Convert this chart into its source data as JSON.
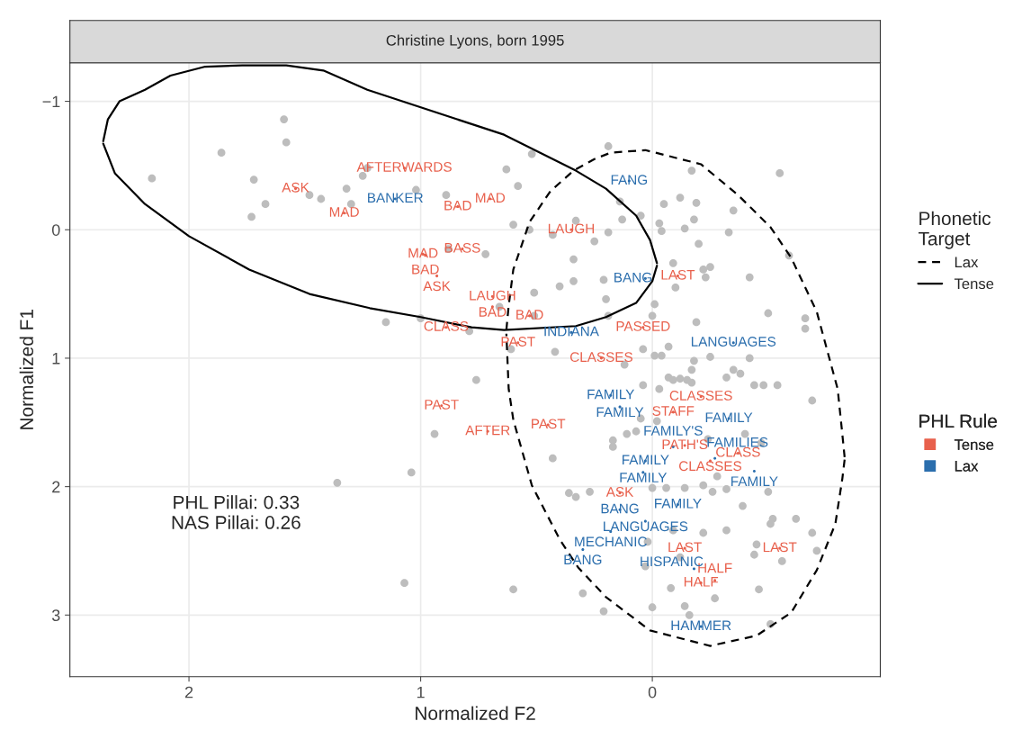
{
  "chart_data": {
    "type": "scatter",
    "title": "Christine Lyons, born 1995",
    "xlabel": "Normalized F2",
    "ylabel": "Normalized F1",
    "legend_title": [
      "Phonetic\nTarget",
      "PHL Rule"
    ],
    "xlim": [
      2.514,
      -0.984
    ],
    "ylim": [
      3.48,
      -1.3
    ],
    "xticks": [
      2,
      1,
      0
    ],
    "yticks": [
      {
        "value": -1,
        "label": "−1"
      },
      0,
      1,
      2,
      3
    ],
    "grid": true,
    "legend": "right",
    "annotations": [
      "PHL Pillai: 0.33\nNAS Pillai: 0.26"
    ],
    "series": [
      {
        "color": "#bdbdbd",
        "marker": "circle",
        "x": [
          1.59,
          1.58,
          1.86,
          2.16,
          1.72,
          1.67,
          1.73,
          1.48,
          1.43,
          1.32,
          1.3,
          1.25,
          1.23,
          1.02,
          0.89,
          0.63,
          0.52,
          0.58,
          0.6,
          0.53,
          0.33,
          0.43,
          0.25,
          0.88,
          0.72,
          0.34,
          0.34,
          0.4,
          0.21,
          0.51,
          0.2,
          0.66,
          0.51,
          1.0,
          1.15,
          0.79,
          0.61,
          0.42,
          0.76,
          0.19,
          -0.17,
          -0.55,
          0.14,
          -0.05,
          -0.12,
          -0.19,
          -0.35,
          0.13,
          0.05,
          -0.03,
          -0.18,
          -0.04,
          -0.14,
          -0.33,
          0.19,
          -0.2,
          -0.59,
          -0.09,
          -0.22,
          -0.25,
          -0.23,
          -0.42,
          -0.1,
          -0.01,
          0.0,
          0.19,
          -0.19,
          -0.5,
          -0.66,
          -0.66,
          -0.07,
          0.04,
          -0.01,
          -0.04,
          -0.25,
          -0.42,
          -0.18,
          0.12,
          -0.17,
          -0.35,
          -0.38,
          -0.07,
          -0.09,
          -0.12,
          -0.15,
          -0.17,
          -0.32,
          0.04,
          -0.03,
          -0.44,
          -0.48,
          -0.54,
          1.36,
          0.94,
          1.04,
          0.43,
          0.36,
          0.33,
          0.27,
          1.07,
          0.6,
          0.3,
          0.21,
          -0.69,
          0.17,
          0.17,
          0.11,
          0.07,
          0.05,
          -0.02,
          -0.4,
          -0.47,
          -0.24,
          -0.28,
          -0.32,
          -0.26,
          -0.22,
          -0.14,
          -0.06,
          0.0,
          -0.5,
          -0.39,
          -0.52,
          -0.51,
          -0.62,
          -0.69,
          -0.71,
          -0.56,
          -0.45,
          -0.44,
          -0.32,
          -0.22,
          -0.09,
          0.02,
          0.03,
          -0.08,
          -0.12,
          -0.27,
          -0.14,
          -0.16,
          0.0,
          -0.46,
          -0.51
        ],
        "values": [
          -0.86,
          -0.68,
          -0.6,
          -0.4,
          -0.39,
          -0.2,
          -0.1,
          -0.27,
          -0.24,
          -0.32,
          -0.2,
          -0.42,
          -0.48,
          -0.31,
          -0.27,
          -0.47,
          -0.59,
          -0.34,
          -0.04,
          0.0,
          -0.07,
          0.04,
          0.09,
          0.15,
          0.19,
          0.23,
          0.4,
          0.44,
          0.39,
          0.49,
          0.54,
          0.6,
          0.67,
          0.69,
          0.72,
          0.79,
          0.93,
          0.95,
          1.17,
          -0.65,
          -0.46,
          -0.44,
          -0.22,
          -0.2,
          -0.25,
          -0.21,
          -0.15,
          -0.08,
          -0.11,
          -0.05,
          -0.08,
          0.01,
          -0.01,
          0.02,
          0.02,
          0.11,
          0.2,
          0.26,
          0.31,
          0.29,
          0.37,
          0.37,
          0.45,
          0.58,
          0.67,
          0.67,
          0.72,
          0.65,
          0.69,
          0.77,
          0.91,
          0.93,
          0.98,
          0.98,
          0.99,
          1.0,
          1.02,
          1.05,
          1.09,
          1.09,
          1.12,
          1.15,
          1.17,
          1.16,
          1.17,
          1.19,
          1.15,
          1.21,
          1.24,
          1.21,
          1.21,
          1.21,
          1.97,
          1.59,
          1.89,
          1.78,
          2.05,
          2.08,
          2.04,
          2.75,
          2.8,
          2.83,
          2.97,
          1.33,
          1.64,
          1.69,
          1.59,
          1.57,
          1.47,
          1.49,
          1.59,
          1.66,
          1.63,
          1.92,
          2.02,
          2.04,
          1.99,
          2.01,
          2.01,
          2.01,
          2.04,
          2.15,
          2.25,
          2.29,
          2.25,
          2.36,
          2.5,
          2.58,
          2.45,
          2.53,
          2.34,
          2.36,
          2.34,
          2.43,
          2.62,
          2.79,
          2.55,
          2.87,
          2.93,
          3.0,
          2.94,
          2.8,
          3.07
        ]
      },
      {
        "type": "scatter",
        "name": "Tense",
        "color": "#e8604c",
        "marker": "none",
        "x": [
          1.07,
          1.54,
          1.33,
          0.84,
          0.7,
          0.35,
          0.99,
          0.98,
          0.82,
          0.93,
          0.69,
          0.69,
          0.53,
          0.89,
          0.58,
          0.04,
          -0.11,
          0.22,
          -0.21,
          -0.09,
          0.91,
          0.45,
          0.71,
          -0.14,
          -0.37,
          -0.25,
          0.14,
          -0.14,
          -0.55,
          -0.21,
          -0.27
        ],
        "values": [
          -0.48,
          -0.32,
          -0.13,
          -0.18,
          -0.24,
          0.0,
          0.19,
          0.2,
          0.15,
          0.36,
          0.52,
          0.6,
          0.67,
          0.76,
          0.88,
          0.76,
          0.36,
          1.0,
          1.3,
          1.42,
          1.37,
          1.52,
          1.57,
          1.68,
          1.74,
          1.8,
          2.05,
          2.48,
          2.48,
          2.75,
          2.73
        ],
        "value_labels": [
          "AFTERWARDS",
          "ASK",
          "MAD",
          "BAD",
          "MAD",
          "LAUGH",
          "MAD",
          "BAD",
          "BASS",
          "ASK",
          "LAUGH",
          "BAD",
          "BAD",
          "CLASS",
          "PAST",
          "PASSED",
          "LAST",
          "CLASSES",
          "CLASSES",
          "STAFF",
          "PAST",
          "PAST",
          "AFTER",
          "PATH'S",
          "CLASS",
          "CLASSES",
          "ASK",
          "LAST",
          "LAST",
          "HALF",
          "HALF"
        ]
      },
      {
        "type": "scatter",
        "name": "Lax",
        "color": "#2b6ead",
        "marker": "none",
        "x": [
          0.1,
          1.11,
          0.03,
          0.35,
          -0.35,
          0.18,
          0.14,
          -0.33,
          -0.09,
          -0.27,
          0.03,
          0.04,
          -0.44,
          -0.11,
          0.14,
          0.03,
          0.18,
          0.3,
          -0.18,
          -0.21
        ],
        "values": [
          -0.38,
          -0.24,
          0.38,
          0.8,
          0.88,
          1.29,
          1.38,
          1.47,
          1.69,
          1.78,
          1.8,
          1.89,
          1.88,
          2.14,
          2.18,
          2.27,
          2.35,
          2.49,
          2.64,
          3.09
        ],
        "value_labels": [
          "FANG",
          "BANKER",
          "BANG",
          "INDIANA",
          "LANGUAGES",
          "FAMILY",
          "FAMILY",
          "FAMILY",
          "FAMILY'S",
          "FAMILIES",
          "FAMILY",
          "FAMILY",
          "FAMILY",
          "FAMILY",
          "BANG",
          "LANGUAGES",
          "MECHANIC",
          "BANG",
          "HISPANIC",
          "HAMMER"
        ]
      },
      {
        "type": "line",
        "name": "Lax",
        "color": "#000000",
        "line_style": "dashed",
        "x": [
          0.63,
          0.62,
          0.6,
          0.53,
          0.44,
          0.34,
          0.25,
          0.18,
          0.03,
          -0.21,
          -0.37,
          -0.51,
          -0.6,
          -0.71,
          -0.8,
          -0.82,
          -0.83
        ],
        "values": [
          0.78,
          0.59,
          0.31,
          -0.06,
          -0.3,
          -0.46,
          -0.55,
          -0.6,
          -0.62,
          -0.51,
          -0.27,
          -0.02,
          0.22,
          0.64,
          1.24,
          1.59,
          1.77
        ]
      },
      {
        "type": "line",
        "color": "#000000",
        "line_style": "dashed",
        "x": [
          -0.83,
          -0.82,
          -0.79,
          -0.71,
          -0.6,
          -0.45,
          -0.25,
          0.01,
          0.2,
          0.32,
          0.4,
          0.52,
          0.6,
          0.62,
          0.63
        ],
        "values": [
          1.79,
          1.94,
          2.29,
          2.65,
          2.98,
          3.16,
          3.24,
          3.12,
          2.86,
          2.63,
          2.41,
          1.99,
          1.48,
          1.24,
          0.81
        ]
      },
      {
        "type": "line",
        "name": "Tense",
        "color": "#000000",
        "line_style": "solid",
        "x": [
          2.37,
          2.35,
          2.3,
          2.19,
          2.08,
          1.93,
          1.77,
          1.58,
          1.42,
          1.23,
          0.64,
          0.33,
          0.2,
          0.07,
          0.01,
          -0.02
        ],
        "values": [
          -0.69,
          -0.86,
          -1.0,
          -1.09,
          -1.2,
          -1.27,
          -1.28,
          -1.28,
          -1.24,
          -1.09,
          -0.74,
          -0.46,
          -0.32,
          -0.11,
          0.08,
          0.26
        ]
      },
      {
        "type": "line",
        "color": "#000000",
        "line_style": "solid",
        "x": [
          -0.02,
          0.0,
          0.07,
          0.2,
          0.33,
          0.64,
          0.78,
          1.0,
          1.22,
          1.48,
          1.74,
          2.0,
          2.19,
          2.32,
          2.37
        ],
        "values": [
          0.28,
          0.4,
          0.57,
          0.68,
          0.75,
          0.78,
          0.76,
          0.68,
          0.61,
          0.5,
          0.31,
          0.05,
          -0.2,
          -0.44,
          -0.67
        ]
      }
    ]
  }
}
